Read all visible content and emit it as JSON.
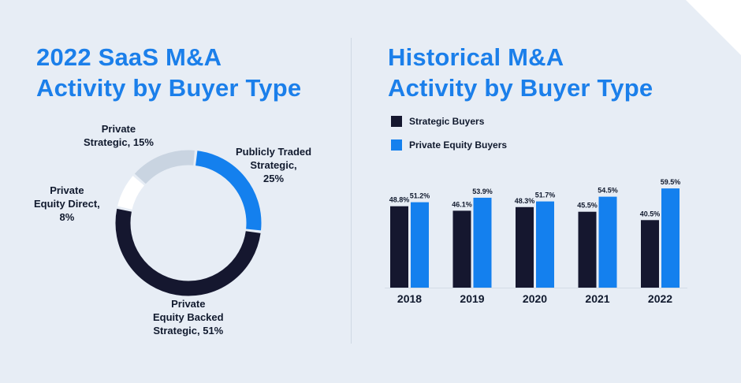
{
  "colors": {
    "background": "#e7edf5",
    "title": "#1b7fea",
    "text": "#111a2e",
    "strategic": "#15172f",
    "private_equity": "#1480ee",
    "publicly_traded": "#1480ee",
    "pe_backed": "#15172f",
    "pe_direct": "#ffffff",
    "private_strategic": "#c9d4e1"
  },
  "left_title": {
    "line1": "2022 SaaS M&A",
    "line2": "Activity by Buyer Type"
  },
  "right_title": {
    "line1": "Historical M&A",
    "line2": "Activity by Buyer Type"
  },
  "chart_data": [
    {
      "type": "pie",
      "title": "2022 SaaS M&A Activity by Buyer Type",
      "slices": [
        {
          "label_lines": [
            "Publicly Traded",
            "Strategic,",
            "25%"
          ],
          "name": "Publicly Traded Strategic",
          "value": 25,
          "color": "#1480ee"
        },
        {
          "label_lines": [
            "Private",
            "Equity Backed",
            "Strategic, 51%"
          ],
          "name": "Private Equity Backed Strategic",
          "value": 51,
          "color": "#15172f"
        },
        {
          "label_lines": [
            "Private",
            "Equity Direct,",
            "8%"
          ],
          "name": "Private Equity Direct",
          "value": 8,
          "color": "#ffffff"
        },
        {
          "label_lines": [
            "Private",
            "Strategic, 15%"
          ],
          "name": "Private Strategic",
          "value": 15,
          "color": "#c9d4e1"
        }
      ]
    },
    {
      "type": "bar",
      "title": "Historical M&A Activity by Buyer Type",
      "categories": [
        "2018",
        "2019",
        "2020",
        "2021",
        "2022"
      ],
      "series": [
        {
          "name": "Strategic Buyers",
          "values": [
            48.8,
            46.1,
            48.3,
            45.5,
            40.5
          ],
          "labels": [
            "48.8%",
            "46.1%",
            "48.3%",
            "45.5%",
            "40.5%"
          ],
          "color": "#15172f"
        },
        {
          "name": "Private Equity Buyers",
          "values": [
            51.2,
            53.9,
            51.7,
            54.5,
            59.5
          ],
          "labels": [
            "51.2%",
            "53.9%",
            "51.7%",
            "54.5%",
            "59.5%"
          ],
          "color": "#1480ee"
        }
      ],
      "ylim": [
        0,
        100
      ],
      "legend": "top-left"
    }
  ]
}
